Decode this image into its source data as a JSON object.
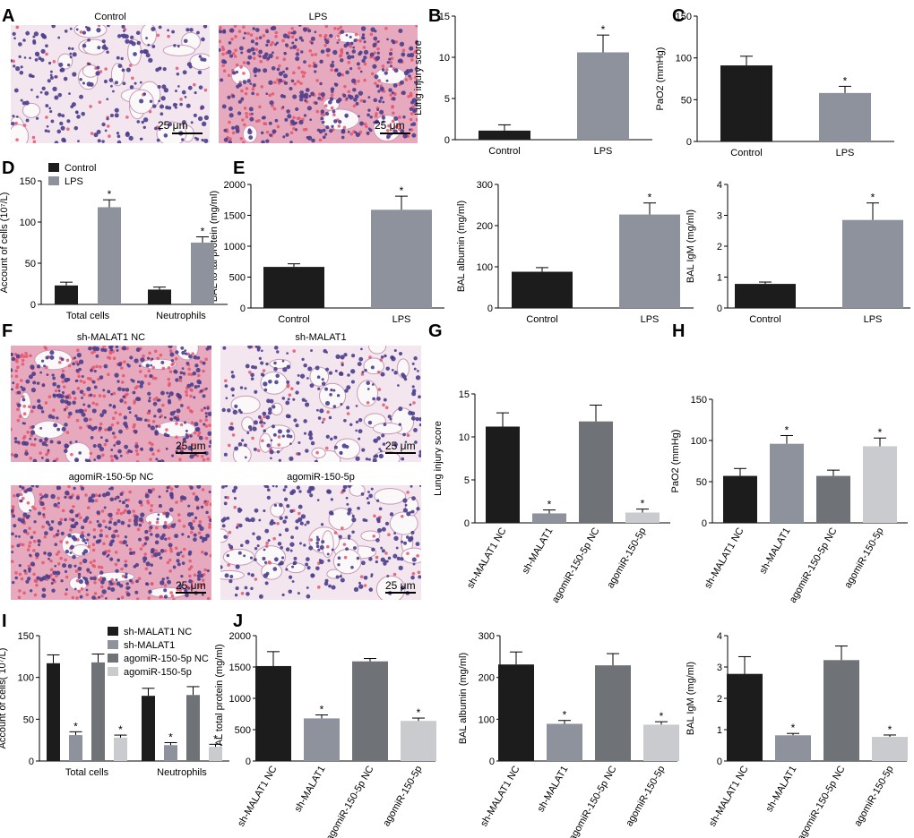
{
  "figure": {
    "panel_letters": [
      "A",
      "B",
      "C",
      "D",
      "E",
      "F",
      "G",
      "H",
      "I",
      "J"
    ],
    "micrographs_A": [
      {
        "label": "Control",
        "scale_bar": "25 μm",
        "tissue": "normal"
      },
      {
        "label": "LPS",
        "scale_bar": "25 μm",
        "tissue": "injured"
      }
    ],
    "micrographs_F": [
      {
        "label": "sh-MALAT1 NC",
        "scale_bar": "25 μm",
        "tissue": "injured"
      },
      {
        "label": "sh-MALAT1",
        "scale_bar": "25 μm",
        "tissue": "normal"
      },
      {
        "label": "agomiR-150-5p NC",
        "scale_bar": "25 μm",
        "tissue": "injured"
      },
      {
        "label": "agomiR-150-5p",
        "scale_bar": "25 μm",
        "tissue": "normal"
      }
    ],
    "colors": {
      "control": "#1c1c1c",
      "lps": "#8d929c",
      "sh_nc": "#1c1c1c",
      "sh": "#8d929c",
      "ago_nc": "#6f7276",
      "ago": "#c9cbcf",
      "nuclei": "#4a3d8c",
      "eosin": "#d98aa8",
      "rbc": "#e2566f"
    }
  },
  "chart_data": [
    {
      "id": "B",
      "type": "bar",
      "categories": [
        "Control",
        "LPS"
      ],
      "values": [
        1.1,
        10.6
      ],
      "errors": [
        0.7,
        2.1
      ],
      "sig": [
        "",
        "*"
      ],
      "ylabel": "Lung injury score",
      "ylim": [
        0,
        15
      ],
      "yticks": [
        0,
        5,
        10,
        15
      ],
      "xlabel": "",
      "title": ""
    },
    {
      "id": "C",
      "type": "bar",
      "categories": [
        "Control",
        "LPS"
      ],
      "values": [
        91,
        58
      ],
      "errors": [
        11,
        8
      ],
      "sig": [
        "",
        "*"
      ],
      "ylabel": "PaO2 (mmHg)",
      "ylim": [
        0,
        150
      ],
      "yticks": [
        0,
        50,
        100,
        150
      ],
      "xlabel": "",
      "title": ""
    },
    {
      "id": "D",
      "type": "bar",
      "categories": [
        "Total cells",
        "Neutrophils"
      ],
      "series": [
        {
          "name": "Control",
          "values": [
            23,
            18
          ],
          "errors": [
            4,
            3
          ],
          "sig": [
            "",
            ""
          ]
        },
        {
          "name": "LPS",
          "values": [
            118,
            75
          ],
          "errors": [
            9,
            7
          ],
          "sig": [
            "*",
            "*"
          ]
        }
      ],
      "ylabel": "Account of cells (10⁷/L)",
      "ylim": [
        0,
        150
      ],
      "yticks": [
        0,
        50,
        100,
        150
      ],
      "legend": "top-left",
      "xlabel": "",
      "title": ""
    },
    {
      "id": "E1",
      "type": "bar",
      "categories": [
        "Control",
        "LPS"
      ],
      "values": [
        665,
        1590
      ],
      "errors": [
        50,
        220
      ],
      "sig": [
        "",
        "*"
      ],
      "ylabel": "BAL to tal protein (mg/ml)",
      "ylim": [
        0,
        2000
      ],
      "yticks": [
        0,
        500,
        1000,
        1500,
        2000
      ],
      "xlabel": "",
      "title": ""
    },
    {
      "id": "E2",
      "type": "bar",
      "categories": [
        "Control",
        "LPS"
      ],
      "values": [
        88,
        227
      ],
      "errors": [
        10,
        28
      ],
      "sig": [
        "",
        "*"
      ],
      "ylabel": "BAL albumin (mg/ml)",
      "ylim": [
        0,
        300
      ],
      "yticks": [
        0,
        100,
        200,
        300
      ],
      "xlabel": "",
      "title": ""
    },
    {
      "id": "E3",
      "type": "bar",
      "categories": [
        "Control",
        "LPS"
      ],
      "values": [
        0.78,
        2.85
      ],
      "errors": [
        0.06,
        0.55
      ],
      "sig": [
        "",
        "*"
      ],
      "ylabel": "BAL IgM (mg/ml)",
      "ylim": [
        0,
        4
      ],
      "yticks": [
        0,
        1,
        2,
        3,
        4
      ],
      "xlabel": "",
      "title": ""
    },
    {
      "id": "G",
      "type": "bar",
      "categories": [
        "sh-MALAT1 NC",
        "sh-MALAT1",
        "agomiR-150-5p NC",
        "agomiR-150-5p"
      ],
      "values": [
        11.2,
        1.1,
        11.8,
        1.2
      ],
      "errors": [
        1.6,
        0.4,
        1.9,
        0.4
      ],
      "sig": [
        "",
        "*",
        "",
        "*"
      ],
      "ylabel": "Lung injury score",
      "ylim": [
        0,
        15
      ],
      "yticks": [
        0,
        5,
        10,
        15
      ],
      "xlabel": "",
      "title": ""
    },
    {
      "id": "H",
      "type": "bar",
      "categories": [
        "sh-MALAT1 NC",
        "sh-MALAT1",
        "agomiR-150-5p NC",
        "agomiR-150-5p"
      ],
      "values": [
        57,
        96,
        57,
        93
      ],
      "errors": [
        9,
        10,
        7,
        10
      ],
      "sig": [
        "",
        "*",
        "",
        "*"
      ],
      "ylabel": "PaO2 (mmHg)",
      "ylim": [
        0,
        150
      ],
      "yticks": [
        0,
        50,
        100,
        150
      ],
      "xlabel": "",
      "title": ""
    },
    {
      "id": "I",
      "type": "bar",
      "categories": [
        "Total cells",
        "Neutrophils"
      ],
      "series": [
        {
          "name": "sh-MALAT1 NC",
          "values": [
            117,
            78
          ],
          "errors": [
            10,
            9
          ],
          "sig": [
            "",
            ""
          ]
        },
        {
          "name": "sh-MALAT1",
          "values": [
            31,
            19
          ],
          "errors": [
            4,
            3
          ],
          "sig": [
            "*",
            "*"
          ]
        },
        {
          "name": "agomiR-150-5p NC",
          "values": [
            118,
            79
          ],
          "errors": [
            10,
            10
          ],
          "sig": [
            "",
            ""
          ]
        },
        {
          "name": "agomiR-150-5p",
          "values": [
            28,
            17
          ],
          "errors": [
            3,
            3
          ],
          "sig": [
            "*",
            "*"
          ]
        }
      ],
      "ylabel": "Account of cells( 10⁷/L)",
      "ylim": [
        0,
        150
      ],
      "yticks": [
        0,
        50,
        100,
        150
      ],
      "legend": "top-right",
      "xlabel": "",
      "title": ""
    },
    {
      "id": "J1",
      "type": "bar",
      "categories": [
        "sh-MALAT1 NC",
        "sh-MALAT1",
        "agomiR-150-5p NC",
        "agomiR-150-5p"
      ],
      "values": [
        1515,
        680,
        1590,
        640
      ],
      "errors": [
        230,
        55,
        45,
        45
      ],
      "sig": [
        "",
        "*",
        "",
        "*"
      ],
      "ylabel": "BAL total protein (mg/ml)",
      "ylim": [
        0,
        2000
      ],
      "yticks": [
        0,
        500,
        1000,
        1500,
        2000
      ],
      "xlabel": "",
      "title": ""
    },
    {
      "id": "J2",
      "type": "bar",
      "categories": [
        "sh-MALAT1 NC",
        "sh-MALAT1",
        "agomiR-150-5p NC",
        "agomiR-150-5p"
      ],
      "values": [
        231,
        89,
        229,
        87
      ],
      "errors": [
        30,
        8,
        28,
        7
      ],
      "sig": [
        "",
        "*",
        "",
        "*"
      ],
      "ylabel": "BAL albumin (mg/ml)",
      "ylim": [
        0,
        300
      ],
      "yticks": [
        0,
        100,
        200,
        300
      ],
      "xlabel": "",
      "title": ""
    },
    {
      "id": "J3",
      "type": "bar",
      "categories": [
        "sh-MALAT1 NC",
        "sh-MALAT1",
        "agomiR-150-5p NC",
        "agomiR-150-5p"
      ],
      "values": [
        2.78,
        0.82,
        3.22,
        0.77
      ],
      "errors": [
        0.55,
        0.06,
        0.45,
        0.06
      ],
      "sig": [
        "",
        "*",
        "",
        "*"
      ],
      "ylabel": "BAL IgM (mg/ml)",
      "ylim": [
        0,
        4
      ],
      "yticks": [
        0,
        1,
        2,
        3,
        4
      ],
      "xlabel": "",
      "title": ""
    }
  ]
}
